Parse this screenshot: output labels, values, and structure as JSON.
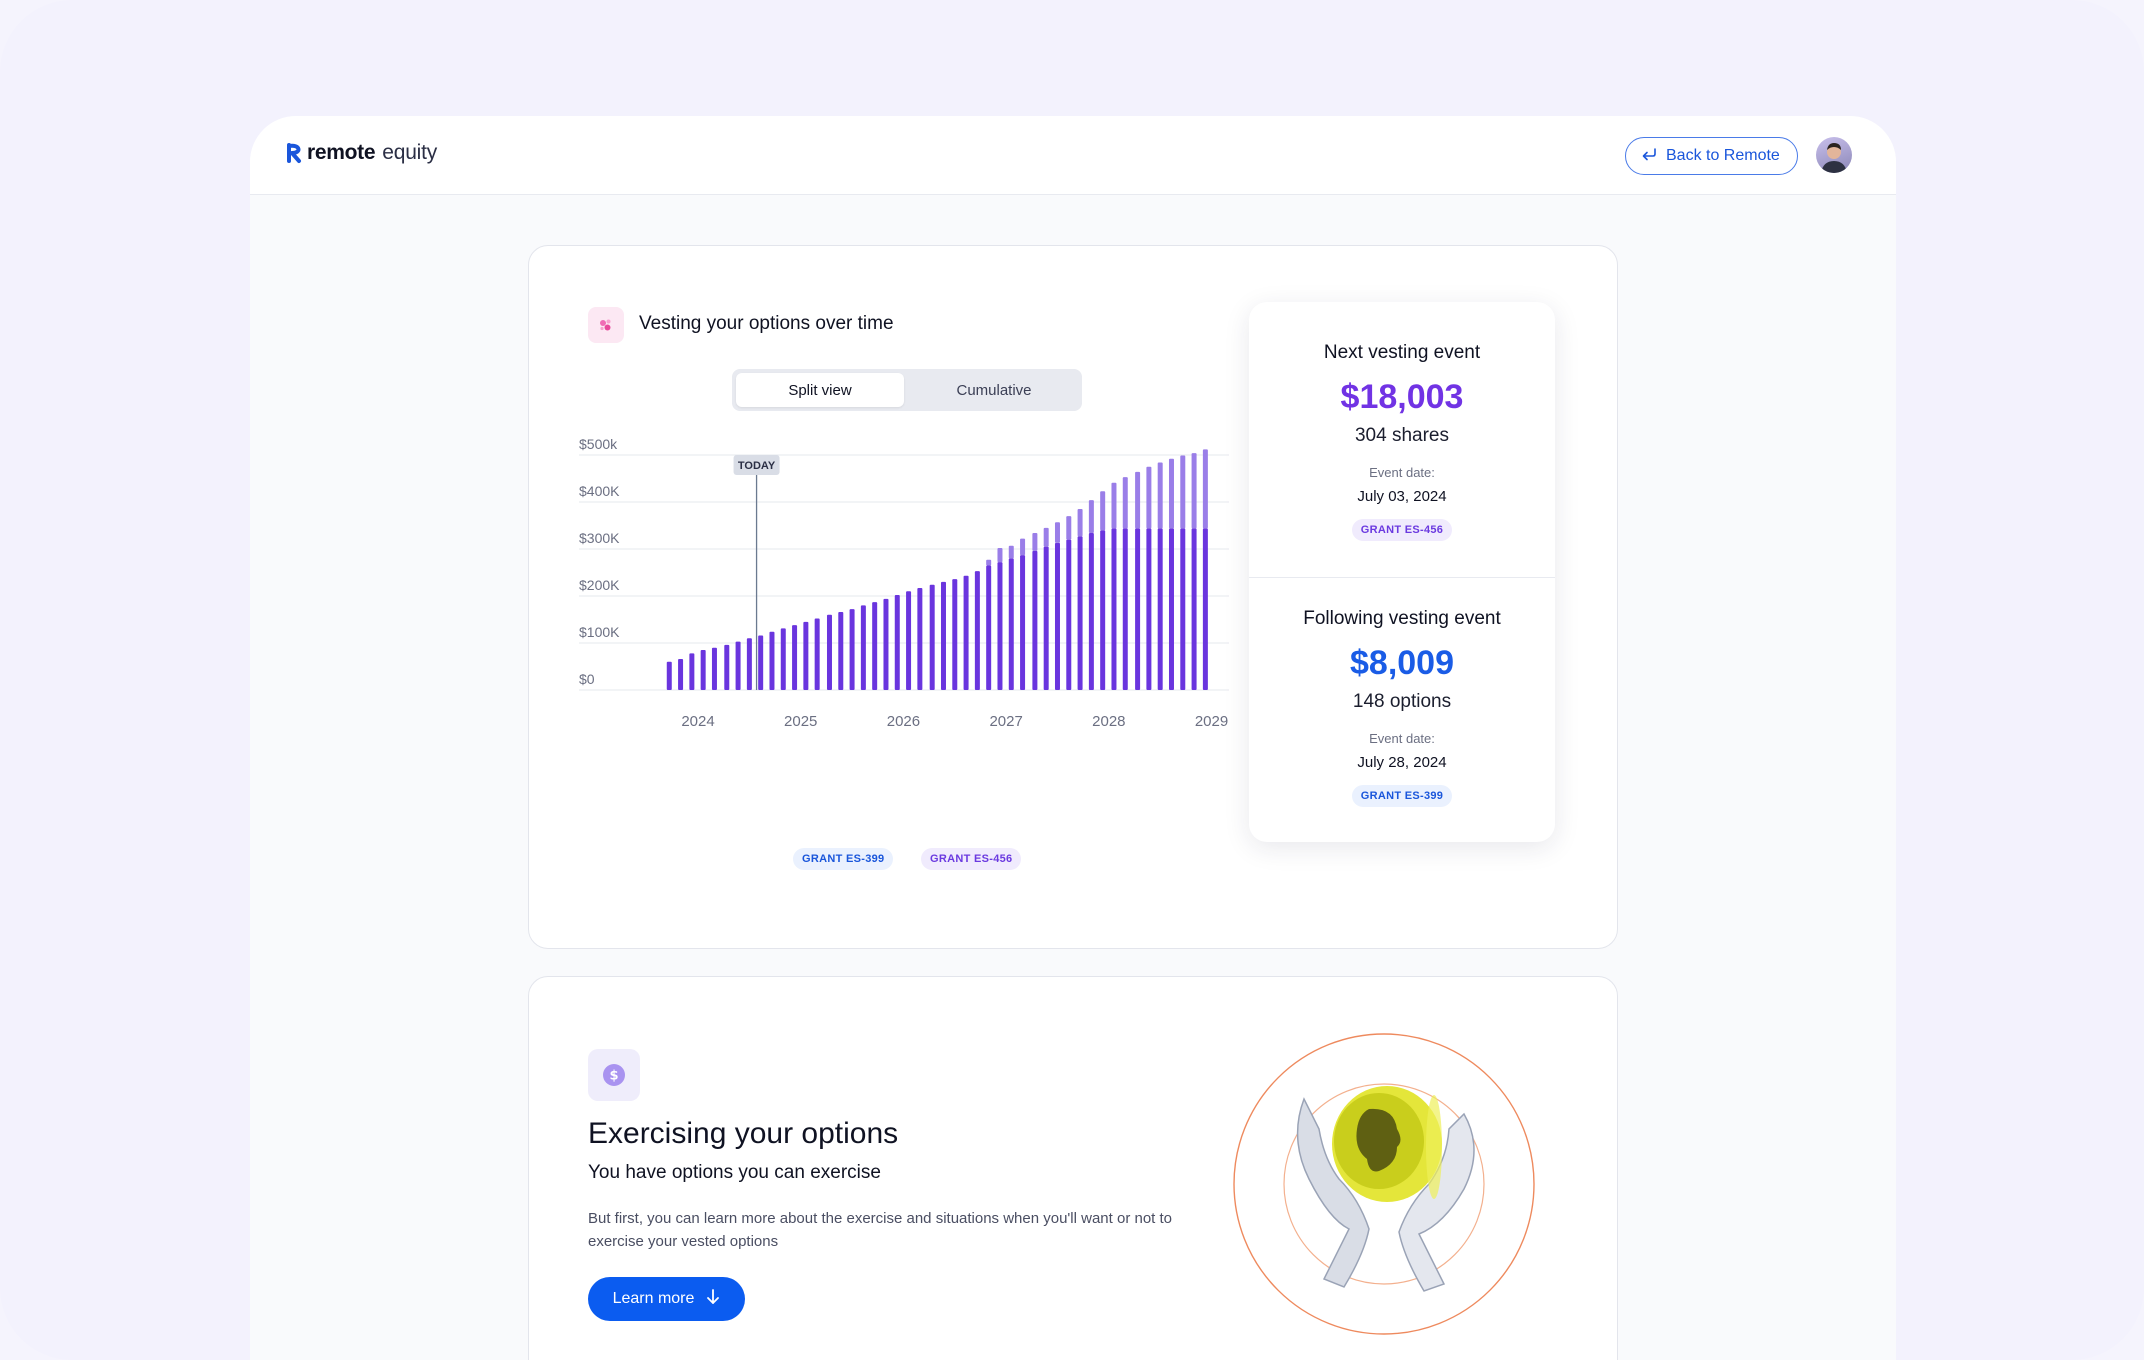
{
  "app": {
    "logo_brand": "remote",
    "logo_product": "equity",
    "back_button": "Back to Remote"
  },
  "vesting": {
    "title": "Vesting your options over time",
    "toggle": {
      "active": "Split view",
      "inactive": "Cumulative"
    },
    "today_label": "TODAY",
    "legend": [
      "GRANT ES-399",
      "GRANT ES-456"
    ]
  },
  "chart_data": {
    "type": "bar",
    "stacked": true,
    "y_tick_labels": [
      "$0",
      "$100K",
      "$200K",
      "$300K",
      "$400K",
      "$500k"
    ],
    "ylim": [
      0,
      500000
    ],
    "x_tick_labels": [
      "2024",
      "2025",
      "2026",
      "2027",
      "2028",
      "2029"
    ],
    "today_x": 2024.85,
    "series": [
      {
        "name": "GRANT ES-399",
        "color": "#6a35de",
        "x": [
          2024.0,
          2024.11,
          2024.22,
          2024.33,
          2024.44,
          2024.56,
          2024.67,
          2024.78,
          2024.89,
          2025.0,
          2025.11,
          2025.22,
          2025.33,
          2025.44,
          2025.56,
          2025.67,
          2025.78,
          2025.89,
          2026.0,
          2026.11,
          2026.22,
          2026.33,
          2026.44,
          2026.56,
          2026.67,
          2026.78,
          2026.89,
          2027.0,
          2027.11,
          2027.22,
          2027.33,
          2027.44,
          2027.56,
          2027.67,
          2027.78,
          2027.89,
          2028.0,
          2028.11,
          2028.22,
          2028.33,
          2028.44,
          2028.56,
          2028.67,
          2028.78,
          2028.89,
          2029.0,
          2029.11,
          2029.22
        ],
        "values": [
          60000,
          66000,
          78000,
          85000,
          90000,
          96000,
          103000,
          110000,
          116000,
          124000,
          131000,
          138000,
          145000,
          152000,
          160000,
          166000,
          172000,
          180000,
          187000,
          194000,
          202000,
          210000,
          217000,
          224000,
          230000,
          236000,
          243000,
          253000,
          265000,
          272000,
          280000,
          287000,
          296000,
          305000,
          313000,
          320000,
          327000,
          334000,
          340000,
          344000,
          344000,
          344000,
          344000,
          344000,
          344000,
          344000,
          344000,
          344000
        ]
      },
      {
        "name": "GRANT ES-456",
        "color": "#9a7ee8",
        "x": [
          2024.0,
          2024.11,
          2024.22,
          2024.33,
          2024.44,
          2024.56,
          2024.67,
          2024.78,
          2024.89,
          2025.0,
          2025.11,
          2025.22,
          2025.33,
          2025.44,
          2025.56,
          2025.67,
          2025.78,
          2025.89,
          2026.0,
          2026.11,
          2026.22,
          2026.33,
          2026.44,
          2026.56,
          2026.67,
          2026.78,
          2026.89,
          2027.0,
          2027.11,
          2027.22,
          2027.33,
          2027.44,
          2027.56,
          2027.67,
          2027.78,
          2027.89,
          2028.0,
          2028.11,
          2028.22,
          2028.33,
          2028.44,
          2028.56,
          2028.67,
          2028.78,
          2028.89,
          2029.0,
          2029.11,
          2029.22
        ],
        "values": [
          0,
          0,
          0,
          0,
          0,
          0,
          0,
          0,
          0,
          0,
          0,
          0,
          0,
          0,
          0,
          0,
          0,
          0,
          0,
          0,
          0,
          0,
          0,
          0,
          0,
          0,
          0,
          0,
          12000,
          30000,
          27000,
          35000,
          38000,
          40000,
          44000,
          50000,
          58000,
          70000,
          83000,
          97000,
          109000,
          120000,
          131000,
          140000,
          148000,
          155000,
          160000,
          168000
        ]
      }
    ]
  },
  "next_event": {
    "title": "Next vesting event",
    "amount": "$18,003",
    "count": "304 shares",
    "date_label": "Event date:",
    "date": "July 03, 2024",
    "grant": "GRANT ES-456"
  },
  "following_event": {
    "title": "Following vesting event",
    "amount": "$8,009",
    "count": "148 options",
    "date_label": "Event date:",
    "date": "July 28, 2024",
    "grant": "GRANT ES-399"
  },
  "exercise": {
    "title": "Exercising your options",
    "subtitle": "You have options you can exercise",
    "body": "But first, you can learn more about the exercise and situations when you'll want or not to exercise your vested options",
    "button": "Learn more"
  },
  "icons": [
    "remote-logo-icon",
    "back-arrow-icon",
    "avatar",
    "chart-sparkle-icon",
    "dollar-coin-icon",
    "arrow-down-icon",
    "coin-hands-illustration"
  ],
  "colors": {
    "primary_blue": "#0b5cf0",
    "purple": "#7133e4",
    "light_purple": "#9a7ee8"
  }
}
